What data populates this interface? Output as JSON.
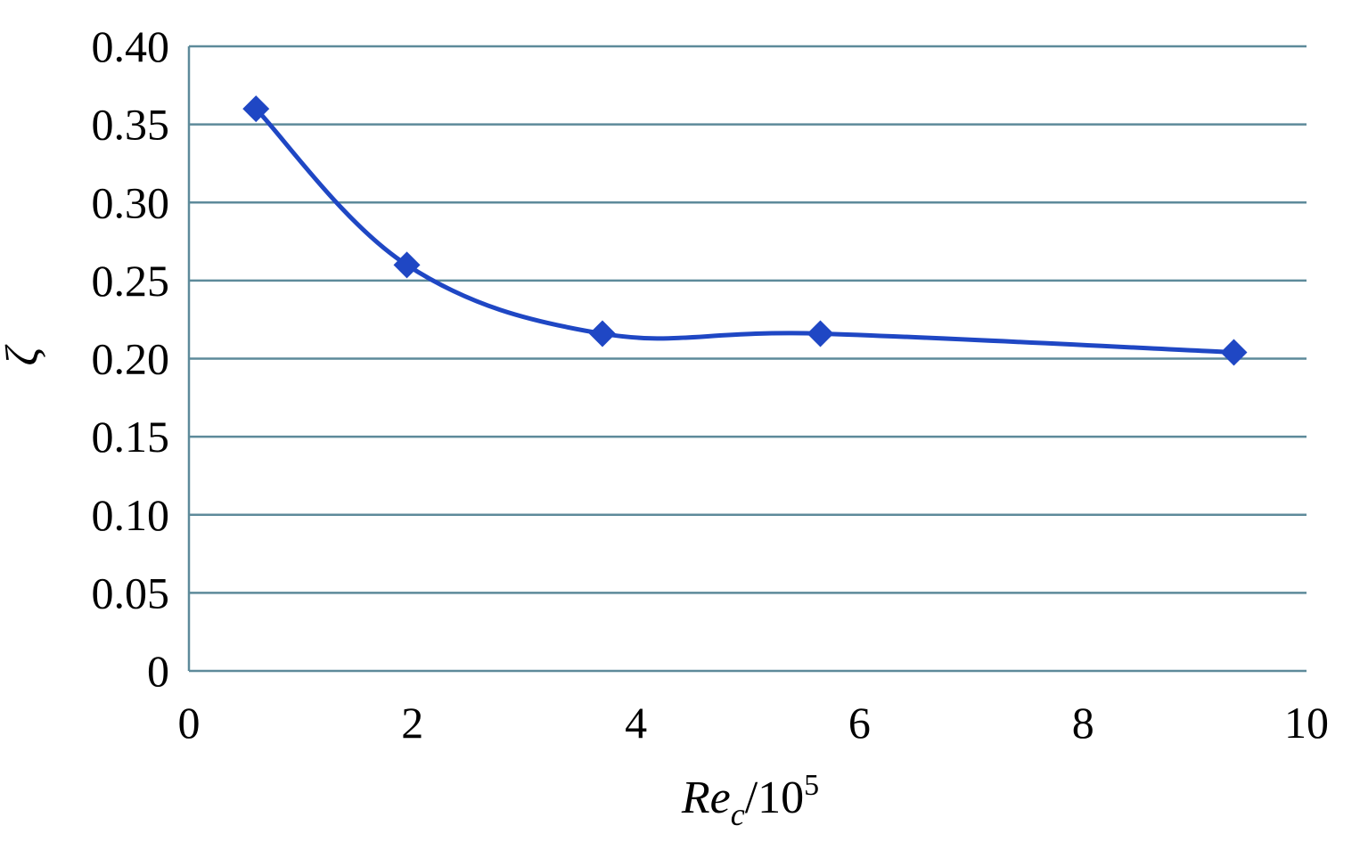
{
  "chart_data": {
    "type": "line",
    "x": [
      0.6,
      1.95,
      3.7,
      5.65,
      9.35
    ],
    "series": [
      {
        "values": [
          0.36,
          0.26,
          0.216,
          0.216,
          0.204
        ]
      }
    ],
    "xlim": [
      0,
      10
    ],
    "ylim": [
      0,
      0.4
    ],
    "xticks": [
      "0",
      "2",
      "4",
      "6",
      "8",
      "10"
    ],
    "xtick_values": [
      0,
      2,
      4,
      6,
      8,
      10
    ],
    "yticks": [
      "0",
      "0.05",
      "0.10",
      "0.15",
      "0.20",
      "0.25",
      "0.30",
      "0.35",
      "0.40"
    ],
    "ytick_values": [
      0,
      0.05,
      0.1,
      0.15,
      0.2,
      0.25,
      0.3,
      0.35,
      0.4
    ],
    "ylabel": "ζ",
    "xlabel": {
      "main": "Re",
      "subscript": "c",
      "divider": "/10",
      "superscript": "5"
    },
    "grid": {
      "horizontal": true,
      "vertical": false
    },
    "marker": "diamond",
    "smooth": true,
    "line_color": "#1f47c4",
    "grid_color": "#5d8a9a",
    "axis_color": "#5d8a9a"
  }
}
